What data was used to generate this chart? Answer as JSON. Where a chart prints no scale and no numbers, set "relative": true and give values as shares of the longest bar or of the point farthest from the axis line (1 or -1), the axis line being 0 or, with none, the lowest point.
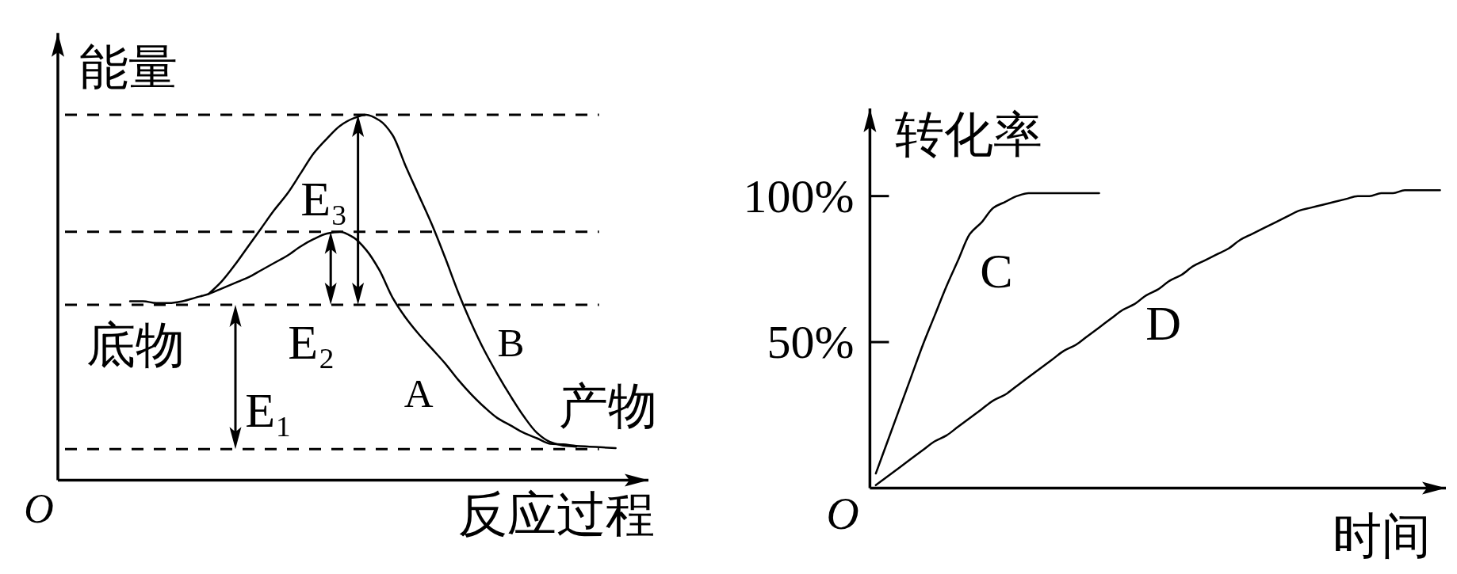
{
  "chart_data": [
    {
      "type": "line",
      "xlabel": "反应过程",
      "ylabel": "能量",
      "relative": true,
      "categories": [
        null,
        null,
        null,
        null,
        null,
        null,
        null,
        null,
        null,
        null,
        null,
        null,
        null,
        null,
        null,
        null,
        null,
        null,
        null,
        null,
        null,
        null,
        null,
        null,
        null,
        null,
        null,
        null,
        null,
        null,
        null,
        null,
        null,
        null,
        null,
        null,
        null,
        null,
        null,
        null,
        null,
        null,
        null,
        null,
        null
      ],
      "series": [
        {
          "name": "A",
          "color": "#000000",
          "values": [
            null,
            null,
            null,
            null,
            null,
            0.49,
            0.49,
            0.485,
            0.485,
            0.49,
            0.5,
            0.51,
            0.525,
            0.54,
            0.555,
            0.575,
            0.595,
            0.615,
            0.64,
            0.66,
            0.675,
            0.68,
            0.665,
            0.63,
            0.575,
            0.5,
            0.445,
            0.4,
            0.36,
            0.32,
            0.275,
            0.235,
            0.2,
            0.17,
            0.15,
            0.13,
            0.115,
            0.1,
            0.098,
            0.094,
            0.092,
            0.09,
            0.088,
            null,
            null
          ]
        },
        {
          "name": "B",
          "color": "#000000",
          "values": [
            null,
            null,
            null,
            null,
            null,
            null,
            null,
            null,
            null,
            null,
            null,
            0.51,
            0.545,
            0.59,
            0.64,
            0.69,
            0.74,
            0.785,
            0.84,
            0.895,
            0.935,
            0.97,
            0.99,
            1.0,
            0.985,
            0.945,
            0.86,
            0.78,
            0.7,
            0.61,
            0.515,
            0.43,
            0.355,
            0.29,
            0.23,
            0.175,
            0.13,
            0.105,
            0.095,
            0.092,
            null,
            null,
            null,
            null,
            null
          ]
        }
      ],
      "ref_lines": [
        {
          "axis": "y",
          "value": 1.0,
          "line_style": "dashed"
        },
        {
          "axis": "y",
          "value": 0.68,
          "line_style": "dashed"
        },
        {
          "axis": "y",
          "value": 0.48,
          "label": "底物",
          "line_style": "dashed"
        },
        {
          "axis": "y",
          "value": 0.085,
          "label": "产物",
          "line_style": "dashed"
        }
      ],
      "annotations": [
        "O",
        "E₁",
        "E₂",
        "E₃"
      ]
    },
    {
      "type": "line",
      "xlabel": "时间",
      "ylabel": "转化率",
      "ylim": [
        0,
        130
      ],
      "yticks": [
        {
          "value": 50,
          "label": "50%"
        },
        {
          "value": 100,
          "label": "100%"
        }
      ],
      "categories": [
        null,
        null,
        null,
        null,
        null,
        null,
        null,
        null,
        null,
        null,
        null,
        null,
        null,
        null,
        null,
        null,
        null,
        null,
        null,
        null,
        null,
        null,
        null,
        null,
        null,
        null,
        null,
        null,
        null,
        null,
        null,
        null,
        null,
        null,
        null,
        null,
        null,
        null,
        null,
        null,
        null,
        null,
        null,
        null,
        null,
        null,
        null,
        null,
        null
      ],
      "series": [
        {
          "name": "C",
          "color": "#000000",
          "values": [
            5,
            16,
            27,
            38,
            49,
            59,
            69,
            78,
            87,
            91,
            96,
            98,
            100,
            101,
            101,
            101,
            101,
            101,
            101,
            101,
            null,
            null,
            null,
            null,
            null,
            null,
            null,
            null,
            null,
            null,
            null,
            null,
            null,
            null,
            null,
            null,
            null,
            null,
            null,
            null,
            null,
            null,
            null,
            null,
            null,
            null,
            null,
            null,
            null
          ]
        },
        {
          "name": "D",
          "color": "#000000",
          "values": [
            1,
            4,
            7,
            10,
            13,
            16,
            18,
            21,
            24,
            27,
            30,
            32,
            35,
            38,
            41,
            44,
            47,
            49,
            52,
            55,
            58,
            61,
            63,
            66,
            68,
            71,
            73,
            76,
            78,
            80,
            82,
            85,
            87,
            89,
            91,
            93,
            95,
            96,
            97,
            98,
            99,
            100,
            100,
            101,
            101,
            102,
            102,
            102,
            102
          ]
        }
      ],
      "annotations": [
        "O"
      ]
    }
  ]
}
